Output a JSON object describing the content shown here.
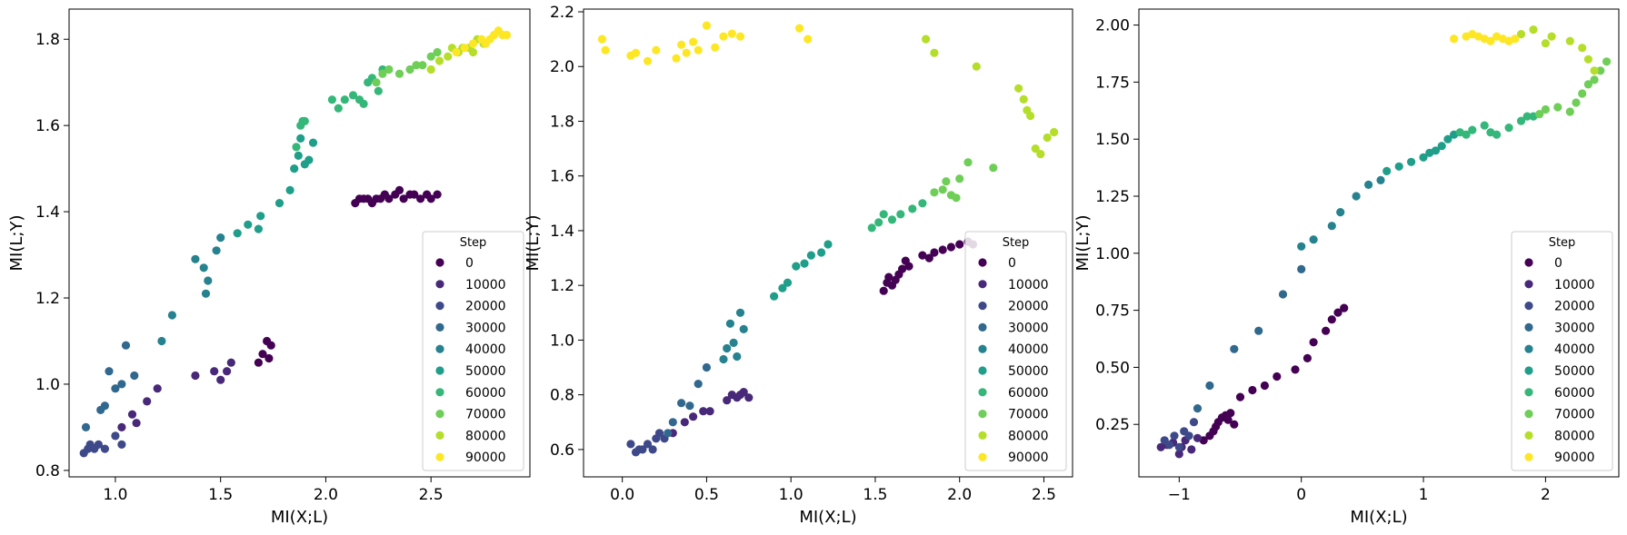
{
  "colors": {
    "step_palette": [
      "#440154",
      "#482878",
      "#3e4989",
      "#31688e",
      "#26828e",
      "#1f9e89",
      "#35b779",
      "#6ece58",
      "#b5de2b",
      "#fde725"
    ]
  },
  "chart_data": [
    {
      "type": "scatter",
      "xlabel": "MI(X;L)",
      "ylabel": "MI(L;Y)",
      "xlim": [
        0.78,
        2.97
      ],
      "ylim": [
        0.785,
        1.87
      ],
      "xticks": [
        1.0,
        1.5,
        2.0,
        2.5
      ],
      "xtick_labels": [
        "1.0",
        "1.5",
        "2.0",
        "2.5"
      ],
      "yticks": [
        0.8,
        1.0,
        1.2,
        1.4,
        1.6,
        1.8
      ],
      "ytick_labels": [
        "0.8",
        "1.0",
        "1.2",
        "1.4",
        "1.6",
        "1.8"
      ],
      "legend": {
        "title": "Step",
        "placement": "lower-right",
        "entries": [
          "0",
          "10000",
          "20000",
          "30000",
          "40000",
          "50000",
          "60000",
          "70000",
          "80000",
          "90000"
        ]
      },
      "series": [
        {
          "step": 0,
          "x": [
            1.68,
            1.7,
            1.72,
            1.73,
            1.74,
            2.14,
            2.16,
            2.18,
            2.2,
            2.22,
            2.24,
            2.26,
            2.28,
            2.3,
            2.33,
            2.35,
            2.37,
            2.4,
            2.42,
            2.45,
            2.48,
            2.5,
            2.53
          ],
          "y": [
            1.05,
            1.07,
            1.1,
            1.06,
            1.09,
            1.42,
            1.43,
            1.43,
            1.43,
            1.42,
            1.43,
            1.43,
            1.44,
            1.43,
            1.44,
            1.45,
            1.43,
            1.44,
            1.44,
            1.43,
            1.44,
            1.43,
            1.44
          ]
        },
        {
          "step": 10000,
          "x": [
            1.38,
            1.47,
            1.5,
            1.53,
            1.55,
            1.15,
            1.2,
            1.08,
            1.1,
            1.03
          ],
          "y": [
            1.02,
            1.03,
            1.01,
            1.03,
            1.05,
            0.96,
            0.99,
            0.93,
            0.91,
            0.9
          ]
        },
        {
          "step": 20000,
          "x": [
            0.85,
            0.87,
            0.88,
            0.9,
            0.92,
            0.95,
            1.0,
            1.03
          ],
          "y": [
            0.84,
            0.85,
            0.86,
            0.85,
            0.86,
            0.85,
            0.88,
            0.86
          ]
        },
        {
          "step": 30000,
          "x": [
            0.86,
            0.93,
            0.95,
            0.97,
            1.0,
            1.03,
            1.05,
            1.09
          ],
          "y": [
            0.9,
            0.94,
            0.95,
            1.03,
            0.99,
            1.0,
            1.09,
            1.02
          ]
        },
        {
          "step": 40000,
          "x": [
            1.22,
            1.27,
            1.38,
            1.42,
            1.43,
            1.44,
            1.48,
            1.5
          ],
          "y": [
            1.1,
            1.16,
            1.29,
            1.27,
            1.21,
            1.24,
            1.31,
            1.34
          ]
        },
        {
          "step": 50000,
          "x": [
            1.58,
            1.63,
            1.68,
            1.69,
            1.78,
            1.83,
            1.85,
            1.87,
            1.88,
            1.9,
            1.92,
            1.94
          ],
          "y": [
            1.35,
            1.37,
            1.36,
            1.39,
            1.42,
            1.45,
            1.5,
            1.53,
            1.57,
            1.51,
            1.52,
            1.56
          ]
        },
        {
          "step": 60000,
          "x": [
            1.86,
            1.88,
            1.89,
            1.9,
            2.03,
            2.06,
            2.09,
            2.13,
            2.16,
            2.18,
            2.2,
            2.22,
            2.25,
            2.27
          ],
          "y": [
            1.55,
            1.6,
            1.61,
            1.61,
            1.66,
            1.64,
            1.66,
            1.67,
            1.66,
            1.65,
            1.7,
            1.71,
            1.68,
            1.73
          ]
        },
        {
          "step": 70000,
          "x": [
            2.24,
            2.27,
            2.3,
            2.35,
            2.4,
            2.43,
            2.46,
            2.5,
            2.53
          ],
          "y": [
            1.7,
            1.72,
            1.73,
            1.72,
            1.73,
            1.74,
            1.74,
            1.76,
            1.77
          ]
        },
        {
          "step": 80000,
          "x": [
            2.5,
            2.54,
            2.58,
            2.6,
            2.63,
            2.65,
            2.68,
            2.7,
            2.72,
            2.75
          ],
          "y": [
            1.73,
            1.75,
            1.76,
            1.78,
            1.77,
            1.78,
            1.78,
            1.77,
            1.8,
            1.79
          ]
        },
        {
          "step": 90000,
          "x": [
            2.62,
            2.66,
            2.7,
            2.74,
            2.76,
            2.78,
            2.8,
            2.82,
            2.84,
            2.86
          ],
          "y": [
            1.77,
            1.78,
            1.79,
            1.8,
            1.79,
            1.8,
            1.81,
            1.82,
            1.81,
            1.81
          ]
        }
      ]
    },
    {
      "type": "scatter",
      "xlabel": "MI(X;L)",
      "ylabel": "MI(L;Y)",
      "xlim": [
        -0.23,
        2.67
      ],
      "ylim": [
        0.5,
        2.21
      ],
      "xticks": [
        0.0,
        0.5,
        1.0,
        1.5,
        2.0,
        2.5
      ],
      "xtick_labels": [
        "0.0",
        "0.5",
        "1.0",
        "1.5",
        "2.0",
        "2.5"
      ],
      "yticks": [
        0.6,
        0.8,
        1.0,
        1.2,
        1.4,
        1.6,
        1.8,
        2.0,
        2.2
      ],
      "ytick_labels": [
        "0.6",
        "0.8",
        "1.0",
        "1.2",
        "1.4",
        "1.6",
        "1.8",
        "2.0",
        "2.2"
      ],
      "legend": {
        "title": "Step",
        "placement": "lower-right",
        "entries": [
          "0",
          "10000",
          "20000",
          "30000",
          "40000",
          "50000",
          "60000",
          "70000",
          "80000",
          "90000"
        ]
      },
      "series": [
        {
          "step": 0,
          "x": [
            1.55,
            1.57,
            1.58,
            1.6,
            1.62,
            1.64,
            1.66,
            1.68,
            1.7,
            1.78,
            1.82,
            1.85,
            1.9,
            1.95,
            2.0,
            2.05,
            2.08
          ],
          "y": [
            1.18,
            1.21,
            1.23,
            1.2,
            1.22,
            1.24,
            1.26,
            1.29,
            1.27,
            1.31,
            1.3,
            1.32,
            1.33,
            1.34,
            1.35,
            1.36,
            1.35
          ]
        },
        {
          "step": 10000,
          "x": [
            0.3,
            0.37,
            0.42,
            0.48,
            0.52,
            0.62,
            0.65,
            0.68,
            0.7,
            0.72,
            0.75
          ],
          "y": [
            0.66,
            0.7,
            0.72,
            0.74,
            0.74,
            0.78,
            0.8,
            0.79,
            0.8,
            0.81,
            0.79
          ]
        },
        {
          "step": 20000,
          "x": [
            0.05,
            0.08,
            0.1,
            0.12,
            0.15,
            0.18,
            0.2,
            0.22,
            0.25
          ],
          "y": [
            0.62,
            0.59,
            0.6,
            0.6,
            0.62,
            0.6,
            0.64,
            0.66,
            0.64
          ]
        },
        {
          "step": 30000,
          "x": [
            0.27,
            0.3,
            0.35,
            0.4,
            0.45,
            0.5
          ],
          "y": [
            0.66,
            0.7,
            0.77,
            0.76,
            0.84,
            0.9
          ]
        },
        {
          "step": 40000,
          "x": [
            0.6,
            0.62,
            0.64,
            0.66,
            0.68,
            0.7,
            0.72
          ],
          "y": [
            0.93,
            0.97,
            1.06,
            0.99,
            0.94,
            1.1,
            1.04
          ]
        },
        {
          "step": 50000,
          "x": [
            0.9,
            0.95,
            0.98,
            1.03,
            1.08,
            1.12,
            1.18,
            1.22
          ],
          "y": [
            1.16,
            1.19,
            1.21,
            1.27,
            1.28,
            1.31,
            1.32,
            1.35
          ]
        },
        {
          "step": 60000,
          "x": [
            1.48,
            1.52,
            1.55,
            1.6,
            1.65,
            1.72,
            1.78
          ],
          "y": [
            1.41,
            1.43,
            1.46,
            1.44,
            1.46,
            1.48,
            1.5
          ]
        },
        {
          "step": 70000,
          "x": [
            1.85,
            1.9,
            1.92,
            1.95,
            1.98,
            2.0,
            2.05,
            2.2
          ],
          "y": [
            1.54,
            1.55,
            1.58,
            1.53,
            1.52,
            1.59,
            1.65,
            1.63
          ]
        },
        {
          "step": 80000,
          "x": [
            1.8,
            1.85,
            2.1,
            2.35,
            2.38,
            2.4,
            2.42,
            2.45,
            2.48,
            2.52,
            2.56
          ],
          "y": [
            2.1,
            2.05,
            2.0,
            1.92,
            1.88,
            1.84,
            1.82,
            1.7,
            1.68,
            1.74,
            1.76
          ]
        },
        {
          "step": 90000,
          "x": [
            -0.12,
            -0.1,
            0.05,
            0.08,
            0.15,
            0.2,
            0.32,
            0.35,
            0.38,
            0.42,
            0.45,
            0.5,
            0.55,
            0.6,
            0.65,
            0.7,
            1.05,
            1.1
          ],
          "y": [
            2.1,
            2.06,
            2.04,
            2.05,
            2.02,
            2.06,
            2.03,
            2.08,
            2.05,
            2.09,
            2.06,
            2.15,
            2.07,
            2.11,
            2.12,
            2.11,
            2.14,
            2.1
          ]
        }
      ]
    },
    {
      "type": "scatter",
      "xlabel": "MI(X;L)",
      "ylabel": "MI(L;Y)",
      "xlim": [
        -1.33,
        2.6
      ],
      "ylim": [
        0.02,
        2.07
      ],
      "xticks": [
        -1,
        0,
        1,
        2
      ],
      "xtick_labels": [
        "−1",
        "0",
        "1",
        "2"
      ],
      "yticks": [
        0.25,
        0.5,
        0.75,
        1.0,
        1.25,
        1.5,
        1.75,
        2.0
      ],
      "ytick_labels": [
        "0.25",
        "0.50",
        "0.75",
        "1.00",
        "1.25",
        "1.50",
        "1.75",
        "2.00"
      ],
      "legend": {
        "title": "Step",
        "placement": "lower-right",
        "entries": [
          "0",
          "10000",
          "20000",
          "30000",
          "40000",
          "50000",
          "60000",
          "70000",
          "80000",
          "90000"
        ]
      },
      "series": [
        {
          "step": 0,
          "x": [
            -0.8,
            -0.75,
            -0.72,
            -0.7,
            -0.68,
            -0.65,
            -0.62,
            -0.6,
            -0.58,
            -0.55,
            -0.5,
            -0.4,
            -0.3,
            -0.2,
            -0.05,
            0.05,
            0.1,
            0.2,
            0.25,
            0.3,
            0.35
          ],
          "y": [
            0.18,
            0.2,
            0.22,
            0.24,
            0.26,
            0.28,
            0.29,
            0.27,
            0.3,
            0.25,
            0.37,
            0.4,
            0.42,
            0.46,
            0.49,
            0.54,
            0.61,
            0.66,
            0.71,
            0.74,
            0.76
          ]
        },
        {
          "step": 10000,
          "x": [
            -1.15,
            -1.1,
            -1.05,
            -1.0,
            -0.98,
            -0.95,
            -0.9,
            -0.85
          ],
          "y": [
            0.15,
            0.16,
            0.17,
            0.12,
            0.15,
            0.18,
            0.14,
            0.19
          ]
        },
        {
          "step": 20000,
          "x": [
            -1.12,
            -1.08,
            -1.04,
            -1.0,
            -0.96,
            -0.92,
            -0.88
          ],
          "y": [
            0.18,
            0.16,
            0.2,
            0.15,
            0.22,
            0.2,
            0.26
          ]
        },
        {
          "step": 30000,
          "x": [
            -0.85,
            -0.75,
            -0.55,
            -0.35,
            -0.15,
            0.0
          ],
          "y": [
            0.32,
            0.42,
            0.58,
            0.66,
            0.82,
            0.93
          ]
        },
        {
          "step": 40000,
          "x": [
            0.0,
            0.1,
            0.25,
            0.32,
            0.45,
            0.55,
            0.65
          ],
          "y": [
            1.03,
            1.06,
            1.12,
            1.18,
            1.25,
            1.3,
            1.32
          ]
        },
        {
          "step": 50000,
          "x": [
            0.7,
            0.8,
            0.9,
            1.0,
            1.05,
            1.1,
            1.15,
            1.2,
            1.25
          ],
          "y": [
            1.36,
            1.38,
            1.4,
            1.42,
            1.44,
            1.45,
            1.47,
            1.5,
            1.52
          ]
        },
        {
          "step": 60000,
          "x": [
            1.3,
            1.35,
            1.4,
            1.5,
            1.55,
            1.6,
            1.7,
            1.8,
            1.85,
            1.9
          ],
          "y": [
            1.53,
            1.52,
            1.54,
            1.56,
            1.53,
            1.52,
            1.55,
            1.58,
            1.6,
            1.6
          ]
        },
        {
          "step": 70000,
          "x": [
            1.95,
            2.0,
            2.1,
            2.2,
            2.25,
            2.3,
            2.35,
            2.4,
            2.45,
            2.5
          ],
          "y": [
            1.61,
            1.63,
            1.64,
            1.62,
            1.66,
            1.7,
            1.74,
            1.76,
            1.8,
            1.84
          ]
        },
        {
          "step": 80000,
          "x": [
            1.7,
            1.8,
            1.9,
            2.0,
            2.05,
            2.2,
            2.3,
            2.35,
            2.4
          ],
          "y": [
            1.93,
            1.96,
            1.98,
            1.92,
            1.95,
            1.93,
            1.9,
            1.85,
            1.8
          ]
        },
        {
          "step": 90000,
          "x": [
            1.25,
            1.35,
            1.4,
            1.45,
            1.5,
            1.55,
            1.6,
            1.65,
            1.7,
            1.75
          ],
          "y": [
            1.94,
            1.95,
            1.96,
            1.95,
            1.94,
            1.93,
            1.95,
            1.94,
            1.93,
            1.94
          ]
        }
      ]
    }
  ]
}
